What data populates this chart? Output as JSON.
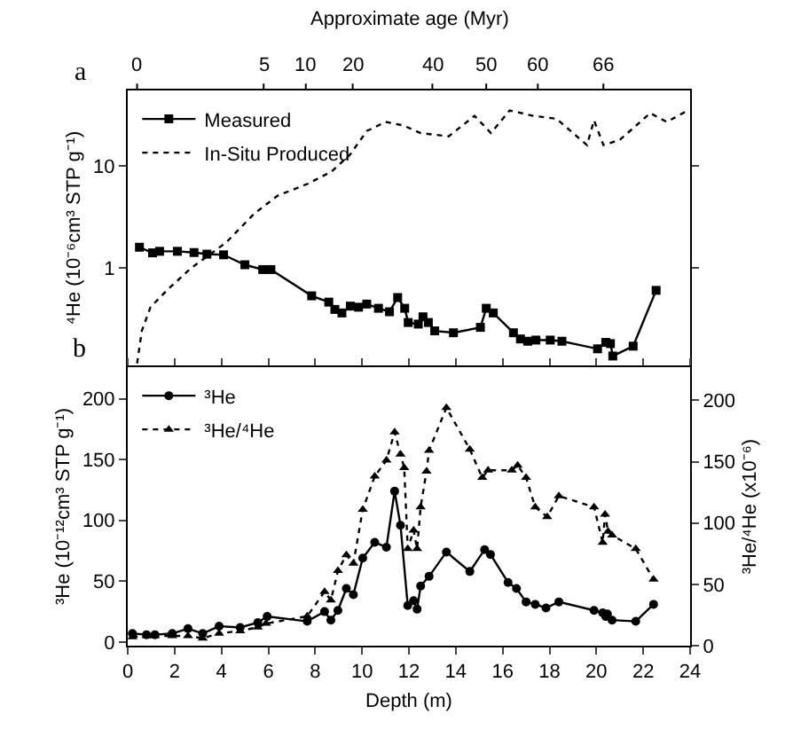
{
  "chart_data": [
    {
      "type": "line",
      "ylabel": "⁴He (10⁻⁶cm³ STP g⁻¹)",
      "x2label": "Approximate age (Myr)",
      "annotations": [
        "a",
        {
          "text": "0",
          "x": 0.4
        },
        {
          "text": "5",
          "x": 5.8
        },
        {
          "text": "10",
          "x": 7.6
        },
        {
          "text": "20",
          "x": 9.6
        },
        {
          "text": "40",
          "x": 13.0
        },
        {
          "text": "50",
          "x": 15.3
        },
        {
          "text": "60",
          "x": 17.5
        },
        {
          "text": "66",
          "x": 20.3
        }
      ],
      "log": "y",
      "xlim": [
        0,
        24
      ],
      "ylim": [
        0.11,
        55
      ],
      "yticks": [
        1,
        10
      ],
      "tick_labels": "y",
      "legend": "top left",
      "grid": false,
      "series": [
        {
          "name": "Measured",
          "color": "#000000",
          "marker": "square",
          "line_style": "solid",
          "x": [
            0.5,
            1.06,
            1.36,
            2.12,
            2.83,
            3.38,
            4.09,
            5.0,
            5.76,
            6.11,
            7.85,
            8.58,
            8.84,
            9.14,
            9.5,
            9.85,
            10.2,
            10.7,
            11.17,
            11.52,
            11.82,
            11.97,
            12.4,
            12.6,
            12.83,
            13.1,
            13.9,
            15.05,
            15.3,
            15.6,
            16.46,
            16.76,
            17.07,
            17.42,
            18.03,
            18.53,
            20.05,
            20.4,
            20.6,
            20.7,
            21.57,
            22.55
          ],
          "values": [
            1.59,
            1.4,
            1.45,
            1.45,
            1.41,
            1.36,
            1.34,
            1.07,
            0.96,
            0.96,
            0.53,
            0.46,
            0.39,
            0.36,
            0.42,
            0.41,
            0.44,
            0.4,
            0.37,
            0.51,
            0.4,
            0.29,
            0.28,
            0.33,
            0.29,
            0.24,
            0.23,
            0.26,
            0.4,
            0.36,
            0.23,
            0.2,
            0.19,
            0.195,
            0.195,
            0.19,
            0.16,
            0.185,
            0.18,
            0.136,
            0.17,
            0.6
          ]
        },
        {
          "name": "In-Situ Produced",
          "color": "#000000",
          "marker": "none",
          "line_style": "dotted",
          "x": [
            0.4,
            0.6,
            0.97,
            1.7,
            2.7,
            4.2,
            5.4,
            6.4,
            7.7,
            8.7,
            9.5,
            10.2,
            11.0,
            11.75,
            12.5,
            13.7,
            14.8,
            15.5,
            16.3,
            16.8,
            17.3,
            18.3,
            19.6,
            19.9,
            20.3,
            21.0,
            22.3,
            23.0,
            23.9
          ],
          "values": [
            0.115,
            0.24,
            0.41,
            0.61,
            0.99,
            1.77,
            3.4,
            5.1,
            6.7,
            8.8,
            13,
            22,
            27,
            25,
            21,
            19.5,
            31,
            21,
            35,
            33,
            31,
            29,
            16,
            28,
            16,
            18,
            33,
            27,
            35
          ]
        }
      ]
    },
    {
      "type": "line",
      "xlabel": "Depth (m)",
      "ylabel": "³He (10⁻¹²cm³ STP g⁻¹)",
      "y2label": "³He/⁴He (x10⁻⁶)",
      "annotations": [
        "b"
      ],
      "xlim": [
        0,
        24
      ],
      "xticks": [
        0,
        2,
        4,
        6,
        8,
        10,
        12,
        14,
        16,
        18,
        20,
        22,
        24
      ],
      "ylim": [
        -3,
        226
      ],
      "yticks": [
        0,
        50,
        100,
        150,
        200
      ],
      "y2lim": [
        0,
        227
      ],
      "y2ticks": [
        0,
        50,
        100,
        150,
        200
      ],
      "legend": "top left",
      "grid": false,
      "series": [
        {
          "name": "³He",
          "color": "#000000",
          "marker": "circle",
          "line_style": "solid",
          "x": [
            0.2,
            0.8,
            1.16,
            1.9,
            2.57,
            3.2,
            3.9,
            4.8,
            5.55,
            5.95,
            7.66,
            8.4,
            8.67,
            8.97,
            9.33,
            9.63,
            10.03,
            10.54,
            11.04,
            11.39,
            11.64,
            11.95,
            12.2,
            12.35,
            12.5,
            12.86,
            13.6,
            14.6,
            15.23,
            15.48,
            16.23,
            16.59,
            17.0,
            17.39,
            17.85,
            18.4,
            19.9,
            20.27,
            20.4,
            20.47,
            20.67,
            21.68,
            22.44
          ],
          "values": [
            7,
            6,
            6,
            7,
            11,
            7,
            13,
            12,
            16,
            21,
            17,
            25,
            18,
            26,
            44,
            39,
            69,
            82,
            78,
            124,
            96,
            30,
            34,
            27,
            46,
            54,
            74,
            58,
            76,
            72,
            49,
            44,
            33,
            31,
            28,
            33,
            26,
            24,
            21,
            23,
            18,
            17,
            31
          ]
        },
        {
          "name": "³He/⁴He",
          "color": "#000000",
          "marker": "triangle",
          "line_style": "dotted",
          "axis": "y2",
          "x": [
            0.2,
            0.8,
            1.16,
            1.9,
            2.57,
            3.2,
            3.9,
            4.8,
            5.55,
            5.9,
            7.66,
            8.4,
            8.67,
            8.97,
            9.33,
            9.63,
            10.03,
            10.54,
            11.04,
            11.39,
            11.64,
            11.8,
            11.95,
            12.2,
            12.35,
            12.5,
            12.75,
            12.86,
            13.6,
            14.6,
            15.13,
            15.38,
            16.39,
            16.64,
            17.0,
            17.39,
            17.9,
            18.4,
            19.9,
            20.27,
            20.37,
            20.5,
            20.67,
            21.68,
            22.44
          ],
          "values": [
            7,
            8,
            8,
            8,
            8,
            6,
            10,
            12,
            15,
            18,
            24,
            44,
            37,
            61,
            74,
            67,
            111,
            138,
            151,
            174,
            156,
            145,
            79,
            94,
            79,
            113,
            142,
            159,
            194,
            160,
            137,
            143,
            143,
            147,
            137,
            113,
            105,
            122,
            113,
            84,
            107,
            93,
            90,
            79,
            54
          ]
        }
      ]
    }
  ]
}
